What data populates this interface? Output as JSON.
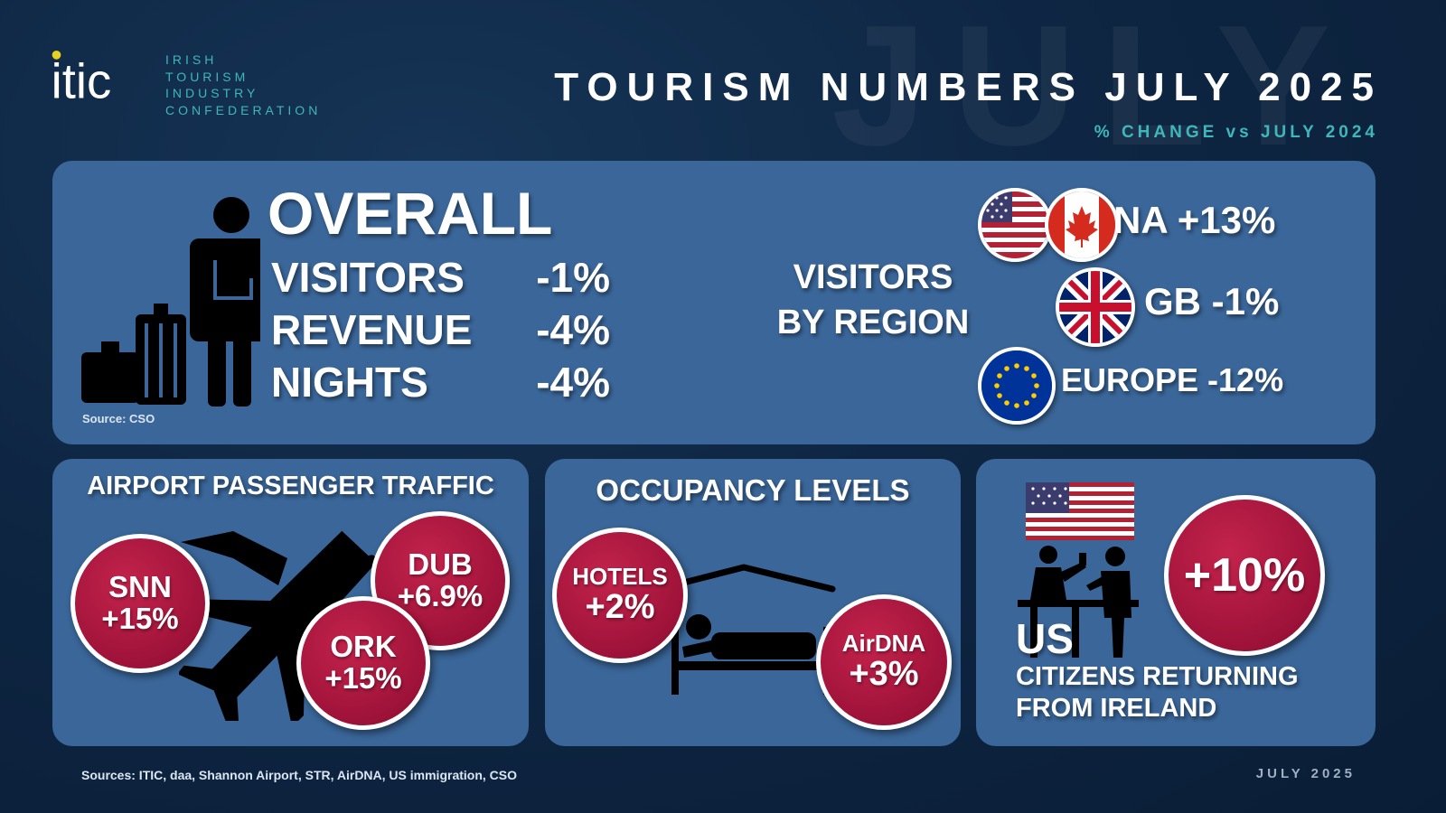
{
  "watermark": "JULY",
  "logo": {
    "mark": "itic",
    "lines": [
      "IRISH",
      "TOURISM",
      "INDUSTRY",
      "CONFEDERATION"
    ]
  },
  "header": {
    "title": "TOURISM NUMBERS JULY 2025",
    "subtitle": "% CHANGE vs JULY 2024"
  },
  "overall": {
    "heading": "OVERALL",
    "rows": [
      {
        "label": "VISITORS",
        "value": "-1%"
      },
      {
        "label": "REVENUE",
        "value": "-4%"
      },
      {
        "label": "NIGHTS",
        "value": "-4%"
      }
    ],
    "source": "Source: CSO"
  },
  "region": {
    "heading_line1": "VISITORS",
    "heading_line2": "BY REGION",
    "items": [
      {
        "label": "NA +13%",
        "flags": [
          "us-flag-icon",
          "canada-flag-icon"
        ]
      },
      {
        "label": "GB -1%",
        "flags": [
          "uk-flag-icon"
        ]
      },
      {
        "label": "EUROPE -12%",
        "flags": [
          "eu-flag-icon"
        ]
      }
    ]
  },
  "airport": {
    "heading": "AIRPORT PASSENGER TRAFFIC",
    "snn": {
      "code": "SNN",
      "value": "+15%"
    },
    "dub": {
      "code": "DUB",
      "value": "+6.9%"
    },
    "ork": {
      "code": "ORK",
      "value": "+15%"
    },
    "icon": "airplane-icon"
  },
  "occupancy": {
    "heading": "OCCUPANCY LEVELS",
    "hotels": {
      "label": "HOTELS",
      "value": "+2%"
    },
    "airdna": {
      "label": "AirDNA",
      "value": "+3%"
    },
    "icon": "bed-icon"
  },
  "us": {
    "value": "+10%",
    "label": "US",
    "desc_line1": "CITIZENS RETURNING",
    "desc_line2": "FROM IRELAND",
    "icons": [
      "us-flag-icon",
      "immigration-desk-icon"
    ]
  },
  "footer": {
    "sources": "Sources: ITIC, daa, Shannon Airport, STR, AirDNA, US immigration, CSO",
    "date": "JULY 2025"
  },
  "colors": {
    "background": "#0d2440",
    "panel": "#3a6699",
    "accent": "#3fb6b9",
    "circle": "#b01a44",
    "logo_dot": "#e6d21f"
  }
}
